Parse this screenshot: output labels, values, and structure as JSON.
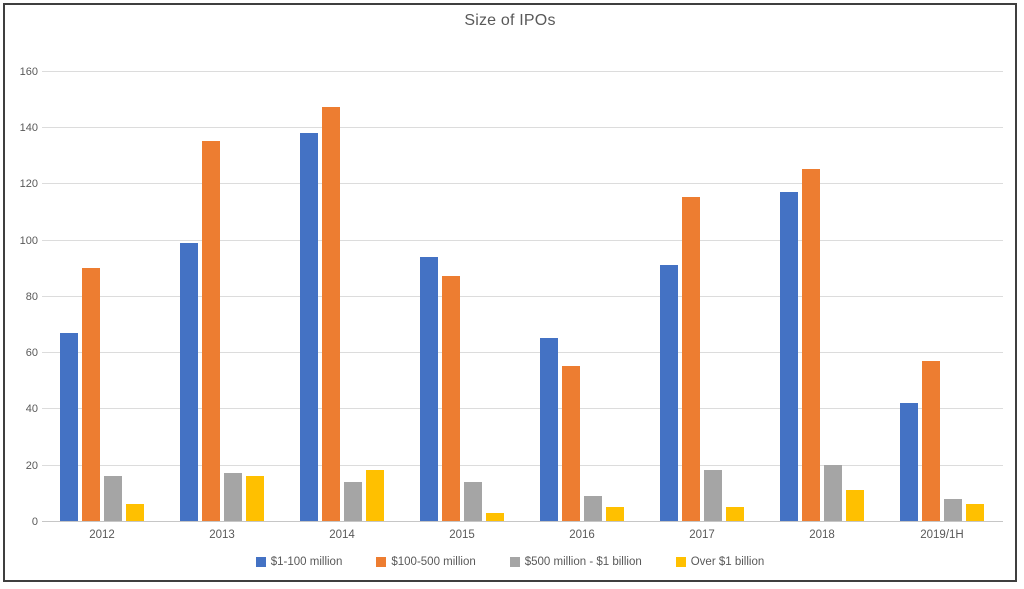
{
  "window": {
    "background": "#ffffff",
    "frame_border_color": "#3f3f3f"
  },
  "chart_data": {
    "type": "bar",
    "title": "Size of IPOs",
    "categories": [
      "2012",
      "2013",
      "2014",
      "2015",
      "2016",
      "2017",
      "2018",
      "2019/1H"
    ],
    "series": [
      {
        "name": "$1-100 million",
        "color": "#4472C4",
        "values": [
          67,
          99,
          138,
          94,
          65,
          91,
          117,
          42
        ]
      },
      {
        "name": "$100-500 million",
        "color": "#ED7D31",
        "values": [
          90,
          135,
          147,
          87,
          55,
          115,
          125,
          57
        ]
      },
      {
        "name": "$500 million - $1 billion",
        "color": "#A5A5A5",
        "values": [
          16,
          17,
          14,
          14,
          9,
          18,
          20,
          8
        ]
      },
      {
        "name": "Over $1 billion",
        "color": "#FFC000",
        "values": [
          6,
          16,
          18,
          3,
          5,
          5,
          11,
          6
        ]
      }
    ],
    "yticks": [
      0,
      20,
      40,
      60,
      80,
      100,
      120,
      140,
      160
    ],
    "ylim": [
      0,
      166
    ],
    "grid": true,
    "legend_position": "bottom",
    "colors": {
      "text": "#595959",
      "gridline": "#dcdcdc",
      "axis_line": "#c6c6c6"
    }
  }
}
